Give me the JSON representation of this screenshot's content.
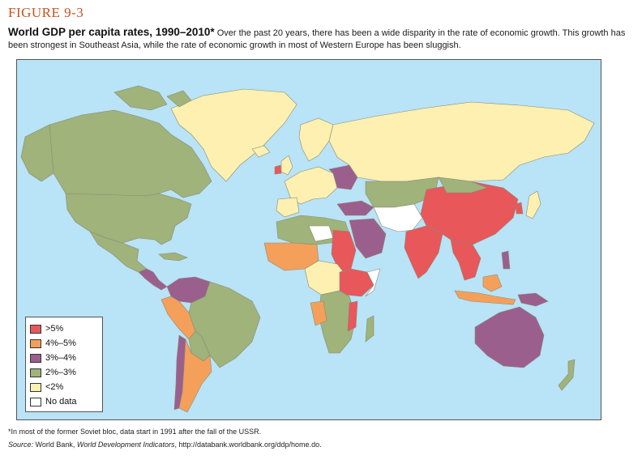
{
  "figure": {
    "label": "FIGURE 9-3",
    "title": "World GDP per capita rates, 1990–2010*",
    "description": " Over the past 20 years, there has been a wide disparity in the rate of economic growth. This growth has been strongest in Southeast Asia, while the rate of economic growth in most of Western Europe has been sluggish."
  },
  "legend": {
    "items": [
      {
        "label": ">5%",
        "color": "#e8575a"
      },
      {
        "label": "4%–5%",
        "color": "#f4a05a"
      },
      {
        "label": "3%–4%",
        "color": "#9b5f8e"
      },
      {
        "label": "2%–3%",
        "color": "#9fb37a"
      },
      {
        "label": "<2%",
        "color": "#fdf0b0"
      },
      {
        "label": "No data",
        "color": "#ffffff"
      }
    ]
  },
  "colors": {
    "ocean": "#b9e3f6",
    "border": "#8a8a7a"
  },
  "footnote": "*In most of the former Soviet bloc, data start in 1991 after the fall of the USSR.",
  "source": {
    "label": "Source:",
    "org": " World Bank, ",
    "publication": "World Development Indicators",
    "url": ", http://databank.worldbank.org/ddp/home.do."
  }
}
